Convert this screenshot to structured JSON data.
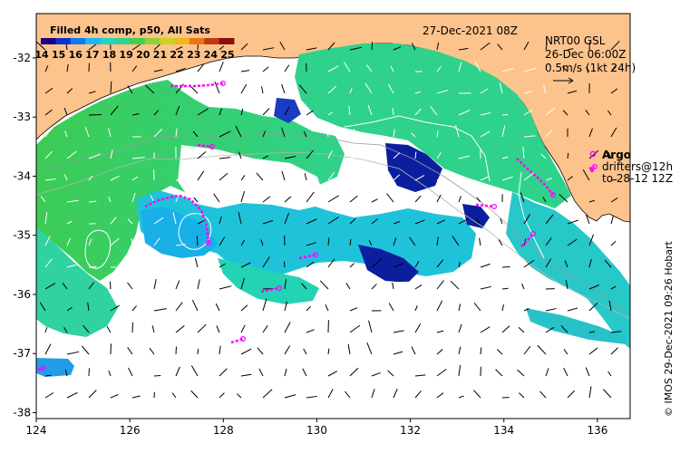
{
  "map": {
    "date_label": "27-Dec-2021 08Z",
    "product_title": "Filled 4h comp, p50, All Sats",
    "colorbar_ticks": [
      "14",
      "15",
      "16",
      "17",
      "18",
      "19",
      "20",
      "21",
      "22",
      "23",
      "24",
      "25"
    ],
    "colorbar_range": [
      14,
      25
    ],
    "colorbar_colors": [
      "#1a0080",
      "#0b2fd0",
      "#0f79f0",
      "#19b8f0",
      "#22d3c4",
      "#2fd28a",
      "#48cc4f",
      "#8fd232",
      "#cbd41f",
      "#f0b81a",
      "#e87614",
      "#c03a10",
      "#8a1010"
    ],
    "current_ref": {
      "line1": "NRT00 GSL",
      "line2": "26-Dec 06:00Z",
      "line3": "0.5m/s (1kt 24h)"
    },
    "argo": {
      "label": "Argo",
      "line2": "drifters@12h",
      "line3": "to 28-12 12Z",
      "marker_color": "#ff00ff"
    },
    "x_axis_ticks": [
      "124",
      "126",
      "128",
      "130",
      "132",
      "134",
      "136"
    ],
    "x_range": [
      124,
      136.7
    ],
    "y_axis_ticks": [
      "-32",
      "-33",
      "-34",
      "-35",
      "-36",
      "-37",
      "-38"
    ],
    "y_range": [
      -38.1,
      -31.25
    ],
    "credit": "© IMOS 29-Dec-2021 09:26 Hobart",
    "land_color": "#fdc38c",
    "no_data_color": "#ffffff"
  }
}
